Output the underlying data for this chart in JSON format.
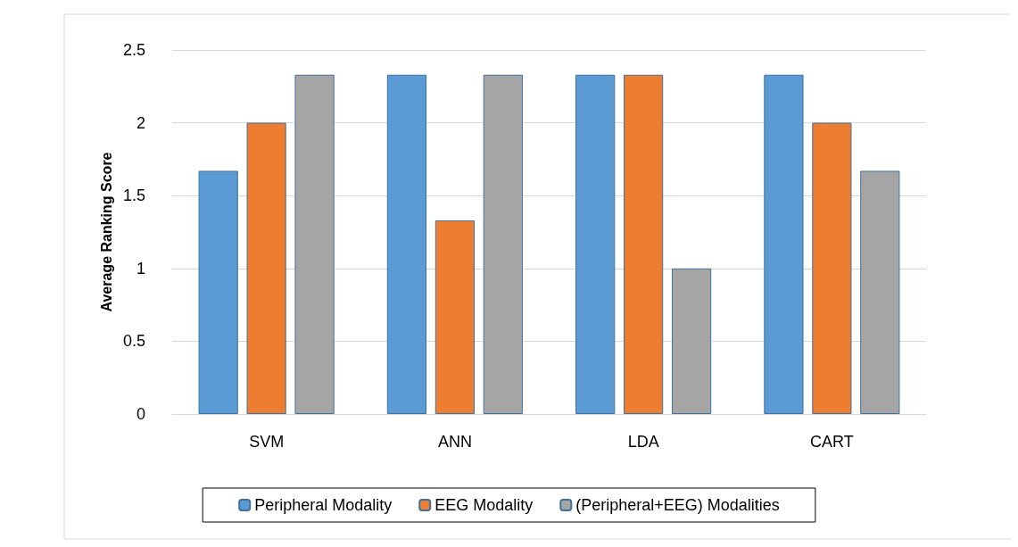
{
  "chart_data": {
    "type": "bar",
    "ylabel": "Average Ranking Score",
    "categories": [
      "SVM",
      "ANN",
      "LDA",
      "CART"
    ],
    "series": [
      {
        "name": "Peripheral Modality",
        "color": "#5b9bd5",
        "values": [
          1.67,
          2.33,
          2.33,
          2.33
        ]
      },
      {
        "name": "EEG Modality",
        "color": "#ed7d31",
        "values": [
          2,
          1.33,
          2.33,
          2
        ]
      },
      {
        "name": "(Peripheral+EEG) Modalities",
        "color": "#a5a5a5",
        "values": [
          2.33,
          2.33,
          1,
          1.67
        ]
      }
    ],
    "ylim": [
      0,
      2.5
    ],
    "yticks": [
      0,
      0.5,
      1,
      1.5,
      2,
      2.5
    ],
    "grid": "y",
    "legend": "bottom"
  }
}
